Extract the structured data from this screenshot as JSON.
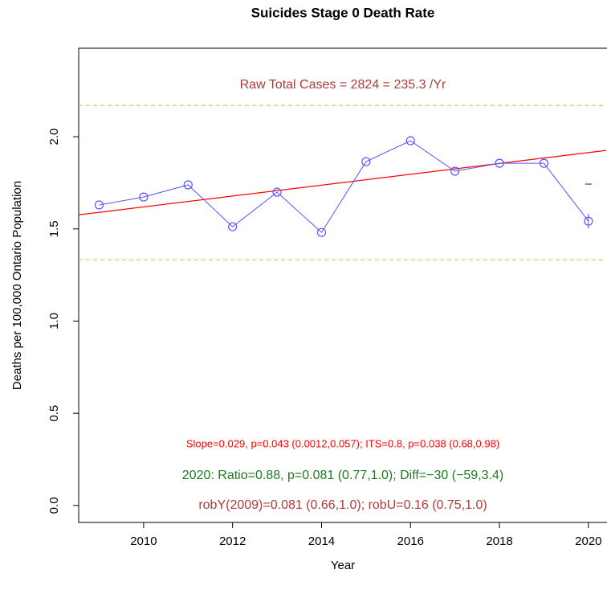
{
  "chart_data": {
    "type": "line",
    "title": "Suicides Stage 0 Death Rate",
    "xlabel": "Year",
    "ylabel": "Deaths per 100,000 Ontario Population",
    "x": [
      2009,
      2010,
      2011,
      2012,
      2013,
      2014,
      2015,
      2016,
      2017,
      2018,
      2019,
      2020
    ],
    "series": [
      {
        "color": "#5555ff",
        "values": [
          1.63,
          1.673,
          1.739,
          1.512,
          1.699,
          1.481,
          1.865,
          1.978,
          1.813,
          1.856,
          1.856,
          1.542
        ],
        "errors": [
          null,
          null,
          null,
          null,
          null,
          null,
          null,
          null,
          null,
          null,
          null,
          0.04
        ]
      }
    ],
    "trend": {
      "color": "#ff0000",
      "x": [
        2009,
        2020
      ],
      "values": [
        1.59,
        1.914
      ]
    },
    "expected": {
      "color": "#1e7b1e",
      "x": 2020,
      "value": 1.743
    },
    "reference_lines": {
      "color": "#f0b020",
      "values": [
        2.17,
        1.333
      ]
    },
    "annotations": [
      {
        "text": "Raw Total Cases = 2824 = 235.3 /Yr",
        "color": "#b03a3a"
      },
      {
        "text": "Slope=0.029, p=0.043 (0.0012,0.057);  ITS=0.8, p=0.038 (0.68,0.98)",
        "color": "#ff0000"
      },
      {
        "text": "2020:  Ratio=0.88, p=0.081 (0.77,1.0);  Diff=−30 (−59,3.4)",
        "color": "#1e7b1e"
      },
      {
        "text": "robY(2009)=0.081 (0.66,1.0); robU=0.16 (0.75,1.0)",
        "color": "#b03a3a"
      }
    ],
    "xlim": [
      2008.54,
      2020.4
    ],
    "ylim": [
      -0.092,
      2.48
    ],
    "xticks": [
      2010,
      2012,
      2014,
      2016,
      2018,
      2020
    ],
    "yticks": [
      {
        "value": 0,
        "label": "0.0"
      },
      0.5,
      {
        "value": 1,
        "label": "1.0"
      },
      1.5,
      {
        "value": 2,
        "label": "2.0"
      }
    ]
  }
}
